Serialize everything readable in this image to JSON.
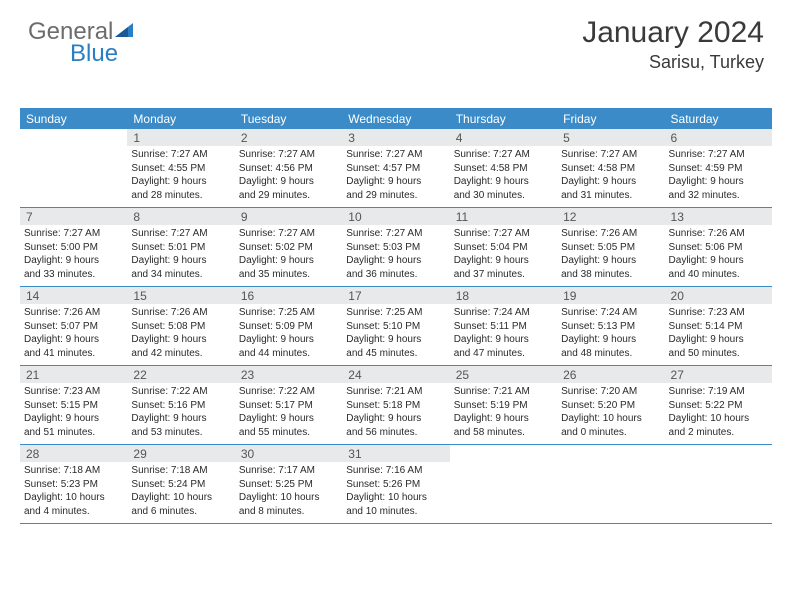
{
  "logo": {
    "text1": "General",
    "text2": "Blue"
  },
  "header": {
    "title": "January 2024",
    "location": "Sarisu, Turkey"
  },
  "colors": {
    "header_bg": "#3b8bc8",
    "header_text": "#ffffff",
    "daynum_bg": "#e8e9ea",
    "border": "#3b8bc8",
    "logo_gray": "#6b6c6e",
    "logo_blue": "#2a7fc4"
  },
  "dayNames": [
    "Sunday",
    "Monday",
    "Tuesday",
    "Wednesday",
    "Thursday",
    "Friday",
    "Saturday"
  ],
  "weeks": [
    [
      {
        "n": "",
        "r": "",
        "s": "",
        "d1": "",
        "d2": ""
      },
      {
        "n": "1",
        "r": "Sunrise: 7:27 AM",
        "s": "Sunset: 4:55 PM",
        "d1": "Daylight: 9 hours",
        "d2": "and 28 minutes."
      },
      {
        "n": "2",
        "r": "Sunrise: 7:27 AM",
        "s": "Sunset: 4:56 PM",
        "d1": "Daylight: 9 hours",
        "d2": "and 29 minutes."
      },
      {
        "n": "3",
        "r": "Sunrise: 7:27 AM",
        "s": "Sunset: 4:57 PM",
        "d1": "Daylight: 9 hours",
        "d2": "and 29 minutes."
      },
      {
        "n": "4",
        "r": "Sunrise: 7:27 AM",
        "s": "Sunset: 4:58 PM",
        "d1": "Daylight: 9 hours",
        "d2": "and 30 minutes."
      },
      {
        "n": "5",
        "r": "Sunrise: 7:27 AM",
        "s": "Sunset: 4:58 PM",
        "d1": "Daylight: 9 hours",
        "d2": "and 31 minutes."
      },
      {
        "n": "6",
        "r": "Sunrise: 7:27 AM",
        "s": "Sunset: 4:59 PM",
        "d1": "Daylight: 9 hours",
        "d2": "and 32 minutes."
      }
    ],
    [
      {
        "n": "7",
        "r": "Sunrise: 7:27 AM",
        "s": "Sunset: 5:00 PM",
        "d1": "Daylight: 9 hours",
        "d2": "and 33 minutes."
      },
      {
        "n": "8",
        "r": "Sunrise: 7:27 AM",
        "s": "Sunset: 5:01 PM",
        "d1": "Daylight: 9 hours",
        "d2": "and 34 minutes."
      },
      {
        "n": "9",
        "r": "Sunrise: 7:27 AM",
        "s": "Sunset: 5:02 PM",
        "d1": "Daylight: 9 hours",
        "d2": "and 35 minutes."
      },
      {
        "n": "10",
        "r": "Sunrise: 7:27 AM",
        "s": "Sunset: 5:03 PM",
        "d1": "Daylight: 9 hours",
        "d2": "and 36 minutes."
      },
      {
        "n": "11",
        "r": "Sunrise: 7:27 AM",
        "s": "Sunset: 5:04 PM",
        "d1": "Daylight: 9 hours",
        "d2": "and 37 minutes."
      },
      {
        "n": "12",
        "r": "Sunrise: 7:26 AM",
        "s": "Sunset: 5:05 PM",
        "d1": "Daylight: 9 hours",
        "d2": "and 38 minutes."
      },
      {
        "n": "13",
        "r": "Sunrise: 7:26 AM",
        "s": "Sunset: 5:06 PM",
        "d1": "Daylight: 9 hours",
        "d2": "and 40 minutes."
      }
    ],
    [
      {
        "n": "14",
        "r": "Sunrise: 7:26 AM",
        "s": "Sunset: 5:07 PM",
        "d1": "Daylight: 9 hours",
        "d2": "and 41 minutes."
      },
      {
        "n": "15",
        "r": "Sunrise: 7:26 AM",
        "s": "Sunset: 5:08 PM",
        "d1": "Daylight: 9 hours",
        "d2": "and 42 minutes."
      },
      {
        "n": "16",
        "r": "Sunrise: 7:25 AM",
        "s": "Sunset: 5:09 PM",
        "d1": "Daylight: 9 hours",
        "d2": "and 44 minutes."
      },
      {
        "n": "17",
        "r": "Sunrise: 7:25 AM",
        "s": "Sunset: 5:10 PM",
        "d1": "Daylight: 9 hours",
        "d2": "and 45 minutes."
      },
      {
        "n": "18",
        "r": "Sunrise: 7:24 AM",
        "s": "Sunset: 5:11 PM",
        "d1": "Daylight: 9 hours",
        "d2": "and 47 minutes."
      },
      {
        "n": "19",
        "r": "Sunrise: 7:24 AM",
        "s": "Sunset: 5:13 PM",
        "d1": "Daylight: 9 hours",
        "d2": "and 48 minutes."
      },
      {
        "n": "20",
        "r": "Sunrise: 7:23 AM",
        "s": "Sunset: 5:14 PM",
        "d1": "Daylight: 9 hours",
        "d2": "and 50 minutes."
      }
    ],
    [
      {
        "n": "21",
        "r": "Sunrise: 7:23 AM",
        "s": "Sunset: 5:15 PM",
        "d1": "Daylight: 9 hours",
        "d2": "and 51 minutes."
      },
      {
        "n": "22",
        "r": "Sunrise: 7:22 AM",
        "s": "Sunset: 5:16 PM",
        "d1": "Daylight: 9 hours",
        "d2": "and 53 minutes."
      },
      {
        "n": "23",
        "r": "Sunrise: 7:22 AM",
        "s": "Sunset: 5:17 PM",
        "d1": "Daylight: 9 hours",
        "d2": "and 55 minutes."
      },
      {
        "n": "24",
        "r": "Sunrise: 7:21 AM",
        "s": "Sunset: 5:18 PM",
        "d1": "Daylight: 9 hours",
        "d2": "and 56 minutes."
      },
      {
        "n": "25",
        "r": "Sunrise: 7:21 AM",
        "s": "Sunset: 5:19 PM",
        "d1": "Daylight: 9 hours",
        "d2": "and 58 minutes."
      },
      {
        "n": "26",
        "r": "Sunrise: 7:20 AM",
        "s": "Sunset: 5:20 PM",
        "d1": "Daylight: 10 hours",
        "d2": "and 0 minutes."
      },
      {
        "n": "27",
        "r": "Sunrise: 7:19 AM",
        "s": "Sunset: 5:22 PM",
        "d1": "Daylight: 10 hours",
        "d2": "and 2 minutes."
      }
    ],
    [
      {
        "n": "28",
        "r": "Sunrise: 7:18 AM",
        "s": "Sunset: 5:23 PM",
        "d1": "Daylight: 10 hours",
        "d2": "and 4 minutes."
      },
      {
        "n": "29",
        "r": "Sunrise: 7:18 AM",
        "s": "Sunset: 5:24 PM",
        "d1": "Daylight: 10 hours",
        "d2": "and 6 minutes."
      },
      {
        "n": "30",
        "r": "Sunrise: 7:17 AM",
        "s": "Sunset: 5:25 PM",
        "d1": "Daylight: 10 hours",
        "d2": "and 8 minutes."
      },
      {
        "n": "31",
        "r": "Sunrise: 7:16 AM",
        "s": "Sunset: 5:26 PM",
        "d1": "Daylight: 10 hours",
        "d2": "and 10 minutes."
      },
      {
        "n": "",
        "r": "",
        "s": "",
        "d1": "",
        "d2": ""
      },
      {
        "n": "",
        "r": "",
        "s": "",
        "d1": "",
        "d2": ""
      },
      {
        "n": "",
        "r": "",
        "s": "",
        "d1": "",
        "d2": ""
      }
    ]
  ]
}
